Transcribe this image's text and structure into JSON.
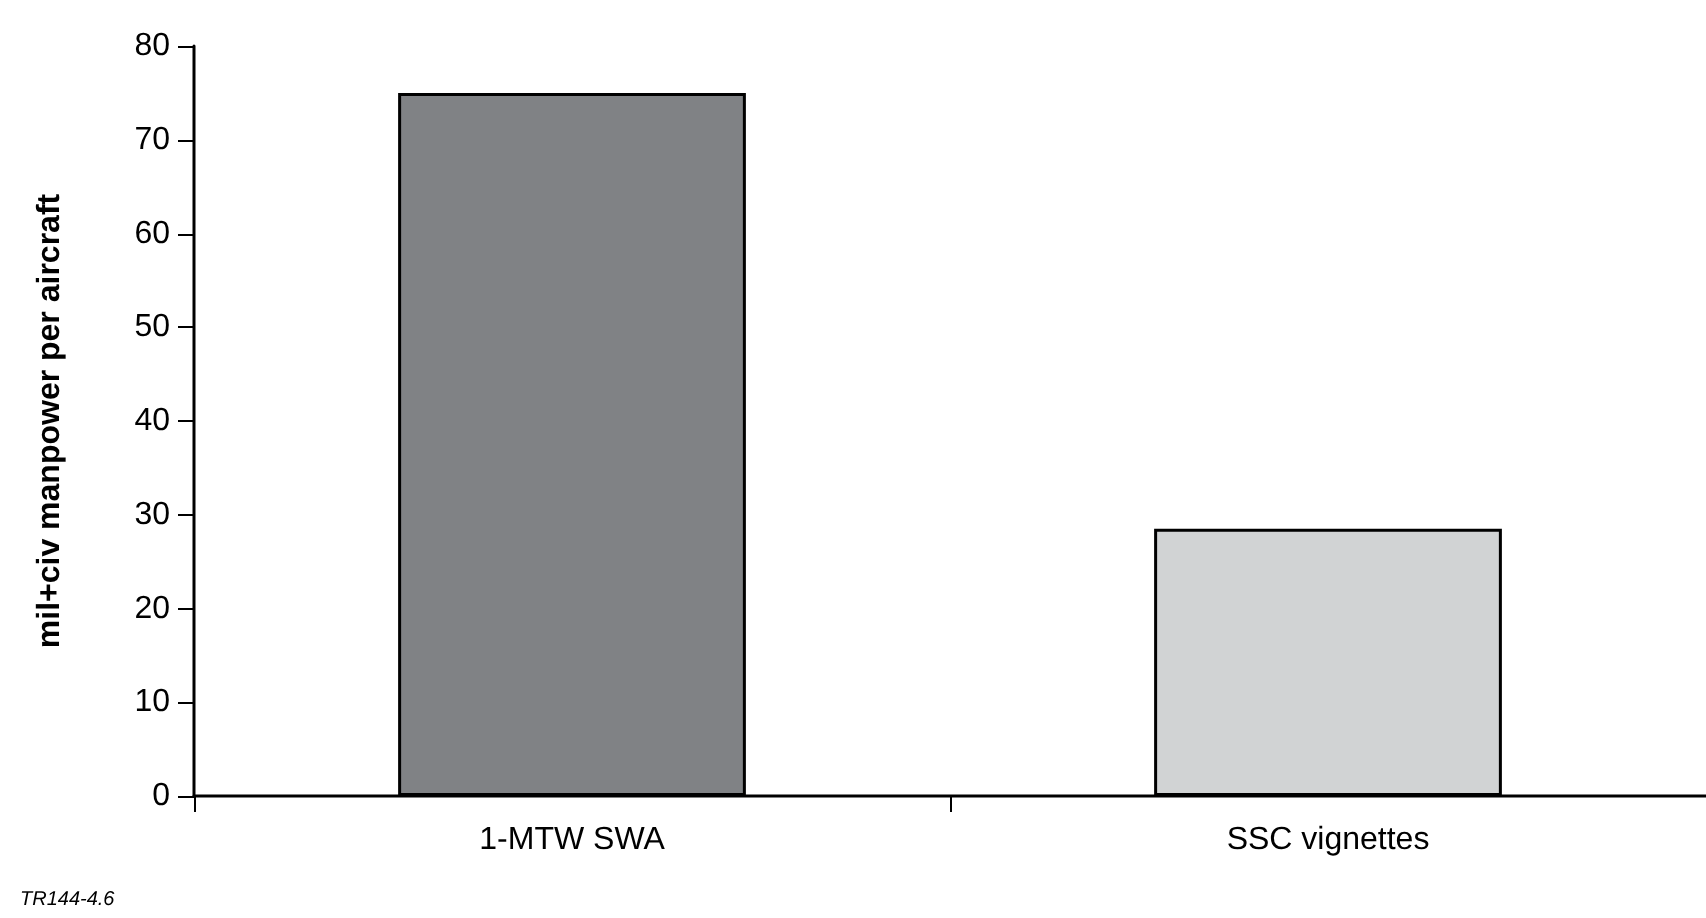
{
  "chart_data": {
    "type": "bar",
    "ylabel": "mil+civ manpower per aircraft",
    "categories": [
      "1-MTW SWA",
      "SSC vignettes"
    ],
    "values": [
      75,
      28.5
    ],
    "colors": [
      "#808285",
      "#d1d3d4"
    ],
    "ylim": [
      0,
      80
    ],
    "yticks": [
      0,
      10,
      20,
      30,
      40,
      50,
      60,
      70,
      80
    ],
    "grid": false,
    "annotations": [
      "TR144-4.6"
    ]
  }
}
